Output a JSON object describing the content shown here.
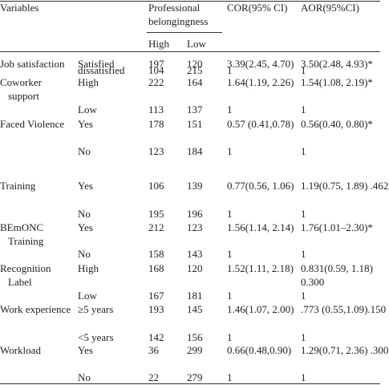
{
  "table": {
    "header": {
      "variables": "Variables",
      "group": "Professional belongingness",
      "high": "High",
      "low": "Low",
      "cor": "COR(95% CI)",
      "aor": "AOR(95%CI)"
    },
    "rows": [
      {
        "variable": "Job satisfaction",
        "level": "Satisfied",
        "high": "197",
        "low": "120",
        "cor": "3.39(2.45, 4.70)",
        "aor": "3.50(2.48, 4.93)*"
      },
      {
        "level": "dissatisfied",
        "high": "104",
        "low": "215",
        "cor": "1",
        "aor": "1"
      },
      {
        "variable": "Coworker support",
        "level": "High",
        "high": "222",
        "low": "164",
        "cor": "1.64(1.19, 2.26)",
        "aor": "1.54(1.08, 2.19)*"
      },
      {
        "level": "Low",
        "high": "113",
        "low": "137",
        "cor": "1",
        "aor": "1"
      },
      {
        "variable": "Faced Violence",
        "level": "Yes",
        "high": "178",
        "low": "151",
        "cor": "0.57 (0.41,0.78)",
        "aor": "0.56(0.40, 0.80)*"
      },
      {
        "level": "No",
        "high": "123",
        "low": "184",
        "cor": "1",
        "aor": "1"
      },
      {
        "variable": "Training",
        "level": "Yes",
        "high": "106",
        "low": "139",
        "cor": "0.77(0.56, 1.06)",
        "aor": "1.19(0.75, 1.89) .462"
      },
      {
        "level": "No",
        "high": "195",
        "low": "196",
        "cor": "1",
        "aor": "1"
      },
      {
        "variable": "BEmONC Training",
        "level": "Yes",
        "high": "212",
        "low": "123",
        "cor": "1.56(1.14, 2.14)",
        "aor": "1.76(1.01–2.30)*"
      },
      {
        "level": "No",
        "high": "158",
        "low": "143",
        "cor": "1",
        "aor": "1"
      },
      {
        "variable": "Recognition Label",
        "level": "High",
        "high": "168",
        "low": "120",
        "cor": "1.52(1.11, 2.18)",
        "aor": "0.831(0.59, 1.18) 0.300"
      },
      {
        "level": "Low",
        "high": "167",
        "low": "181",
        "cor": "1",
        "aor": "1"
      },
      {
        "variable": "Work experience",
        "level": "≥5 years",
        "high": "193",
        "low": "145",
        "cor": "1.46(1.07, 2.00)",
        "aor": ".773 (0.55,1.09).150"
      },
      {
        "level": "<5 years",
        "high": "142",
        "low": "156",
        "cor": "1",
        "aor": "1"
      },
      {
        "variable": "Workload",
        "level": "Yes",
        "high": "36",
        "low": "299",
        "cor": "0.66(0.48,0.90)",
        "aor": "1.29(0.71, 2.36) .300"
      },
      {
        "level": "No",
        "high": "22",
        "low": "279",
        "cor": "1",
        "aor": "1"
      }
    ]
  }
}
